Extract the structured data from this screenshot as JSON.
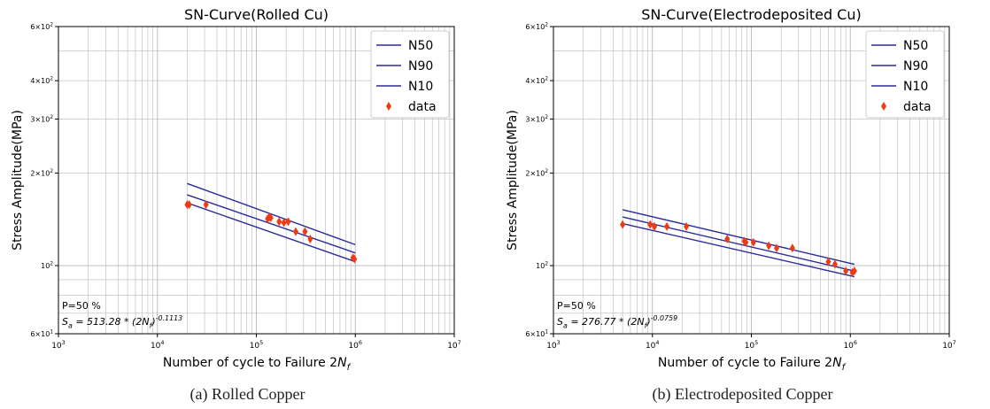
{
  "chart_data": [
    {
      "type": "line",
      "title": "SN-Curve(Rolled Cu)",
      "xlabel": "Number of cycle to Failure 2N_f",
      "ylabel": "Stress Amplitude(MPa)",
      "xscale": "log",
      "yscale": "log",
      "xlim": [
        1000,
        10000000
      ],
      "ylim": [
        60,
        600
      ],
      "grid": true,
      "legend_position": "top-right",
      "x_ticks": [
        "10^3",
        "10^4",
        "10^5",
        "10^6",
        "10^7"
      ],
      "y_ticks": [
        "6×10^1",
        "10^2",
        "2×10^2",
        "3×10^2",
        "4×10^2",
        "6×10^2"
      ],
      "series": [
        {
          "name": "N50",
          "x": [
            20000,
            1000000
          ],
          "y": [
            170,
            110
          ]
        },
        {
          "name": "N90",
          "x": [
            20000,
            1000000
          ],
          "y": [
            185,
            117
          ]
        },
        {
          "name": "N10",
          "x": [
            20000,
            1000000
          ],
          "y": [
            160,
            103
          ]
        },
        {
          "name": "data",
          "style": "scatter",
          "x": [
            20000,
            21000,
            31000,
            130000,
            135000,
            140000,
            170000,
            190000,
            210000,
            250000,
            310000,
            350000,
            950000,
            980000
          ],
          "y": [
            158,
            158,
            158,
            142,
            144,
            143,
            139,
            138,
            139,
            129,
            129,
            122,
            106,
            105
          ]
        }
      ],
      "annotation": {
        "line1": "P=50 %",
        "line2": "S_a = 513.28 * (2N_f)^-0.1113"
      },
      "caption": "(a) Rolled Copper"
    },
    {
      "type": "line",
      "title": "SN-Curve(Electrodeposited Cu)",
      "xlabel": "Number of cycle to Failure 2N_f",
      "ylabel": "Stress Amplitude(MPa)",
      "xscale": "log",
      "yscale": "log",
      "xlim": [
        1000,
        10000000
      ],
      "ylim": [
        60,
        600
      ],
      "grid": true,
      "legend_position": "top-right",
      "x_ticks": [
        "10^3",
        "10^4",
        "10^5",
        "10^6",
        "10^7"
      ],
      "y_ticks": [
        "6×10^1",
        "10^2",
        "2×10^2",
        "3×10^2",
        "4×10^2",
        "6×10^2"
      ],
      "series": [
        {
          "name": "N50",
          "x": [
            5000,
            1100000
          ],
          "y": [
            144,
            96
          ]
        },
        {
          "name": "N90",
          "x": [
            5000,
            1100000
          ],
          "y": [
            152,
            101
          ]
        },
        {
          "name": "N10",
          "x": [
            5000,
            1100000
          ],
          "y": [
            137,
            92
          ]
        },
        {
          "name": "data",
          "style": "scatter",
          "x": [
            5000,
            9500,
            10500,
            14000,
            22000,
            57000,
            85000,
            88000,
            105000,
            150000,
            180000,
            260000,
            600000,
            700000,
            900000,
            1050000,
            1100000
          ],
          "y": [
            136,
            136,
            134,
            134,
            134,
            122,
            120,
            119,
            119,
            116,
            114,
            114,
            103,
            101,
            96,
            95,
            96
          ]
        }
      ],
      "annotation": {
        "line1": "P=50 %",
        "line2": "S_a = 276.77 * (2N_f)^-0.0759"
      },
      "caption": "(b) Electrodeposited Copper"
    }
  ],
  "colors": {
    "fit_line": "#2a2a9c",
    "data_marker": "#ee3b12",
    "grid": "#b8b8b8",
    "axis": "#000000"
  }
}
